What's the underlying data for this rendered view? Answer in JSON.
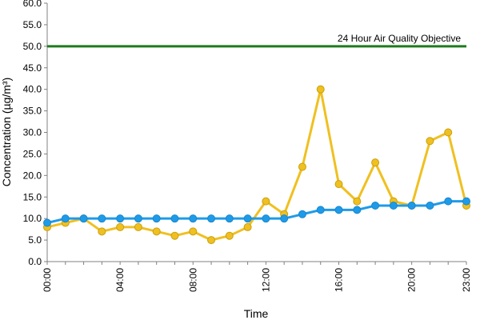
{
  "chart_data": {
    "type": "line",
    "title": "",
    "xlabel": "Time",
    "ylabel": "Concentration (µg/m³)",
    "ylim": [
      0,
      60
    ],
    "yticks": [
      "0.0",
      "5.0",
      "10.0",
      "15.0",
      "20.0",
      "25.0",
      "30.0",
      "35.0",
      "40.0",
      "45.0",
      "50.0",
      "55.0",
      "60.0"
    ],
    "x_tick_labels": [
      "00:00",
      "04:00",
      "08:00",
      "12:00",
      "16:00",
      "20:00",
      "23:00"
    ],
    "x_tick_hours": [
      0,
      4,
      8,
      12,
      16,
      20,
      23
    ],
    "x": [
      0,
      1,
      2,
      3,
      4,
      5,
      6,
      7,
      8,
      9,
      10,
      11,
      12,
      13,
      14,
      15,
      16,
      17,
      18,
      19,
      20,
      21,
      22,
      23
    ],
    "series": [
      {
        "color": "#f0c020",
        "values": [
          8,
          9,
          10,
          7,
          8,
          8,
          7,
          6,
          7,
          5,
          6,
          8,
          14,
          11,
          22,
          40,
          18,
          14,
          23,
          14,
          13,
          28,
          30,
          13
        ]
      },
      {
        "color": "#1e9be8",
        "values": [
          9,
          10,
          10,
          10,
          10,
          10,
          10,
          10,
          10,
          10,
          10,
          10,
          10,
          10,
          11,
          12,
          12,
          12,
          13,
          13,
          13,
          13,
          14,
          14
        ]
      }
    ],
    "reference_line": {
      "value": 50,
      "label": "24 Hour Air Quality Objective",
      "color": "#1e7a1e"
    },
    "grid": false,
    "legend": "none"
  }
}
